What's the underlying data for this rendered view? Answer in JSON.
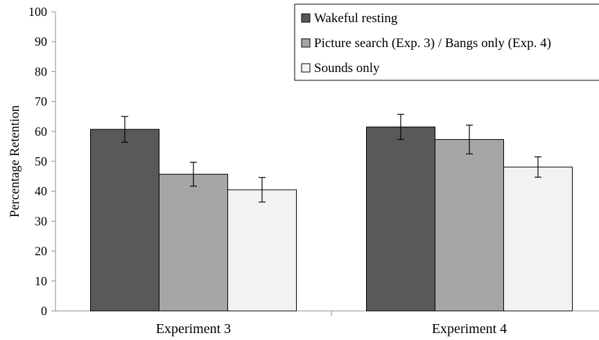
{
  "chart_data": {
    "type": "bar",
    "categories": [
      "Experiment 3",
      "Experiment 4"
    ],
    "ylabel": "Percentage Retention",
    "xlabel": "",
    "ylim": [
      0,
      100
    ],
    "yticks": [
      0,
      10,
      20,
      30,
      40,
      50,
      60,
      70,
      80,
      90,
      100
    ],
    "grid": false,
    "legend_position": "top-right",
    "series": [
      {
        "name": "Wakeful resting",
        "color": "#595959",
        "values": [
          60.7,
          61.5
        ],
        "errors": [
          4.3,
          4.2
        ]
      },
      {
        "name": "Picture search (Exp. 3) / Bangs only (Exp. 4)",
        "color": "#a6a6a6",
        "values": [
          45.7,
          57.3
        ],
        "errors": [
          4.0,
          4.8
        ]
      },
      {
        "name": "Sounds only",
        "color": "#f2f2f2",
        "values": [
          40.5,
          48.1
        ],
        "errors": [
          4.1,
          3.4
        ]
      }
    ]
  }
}
